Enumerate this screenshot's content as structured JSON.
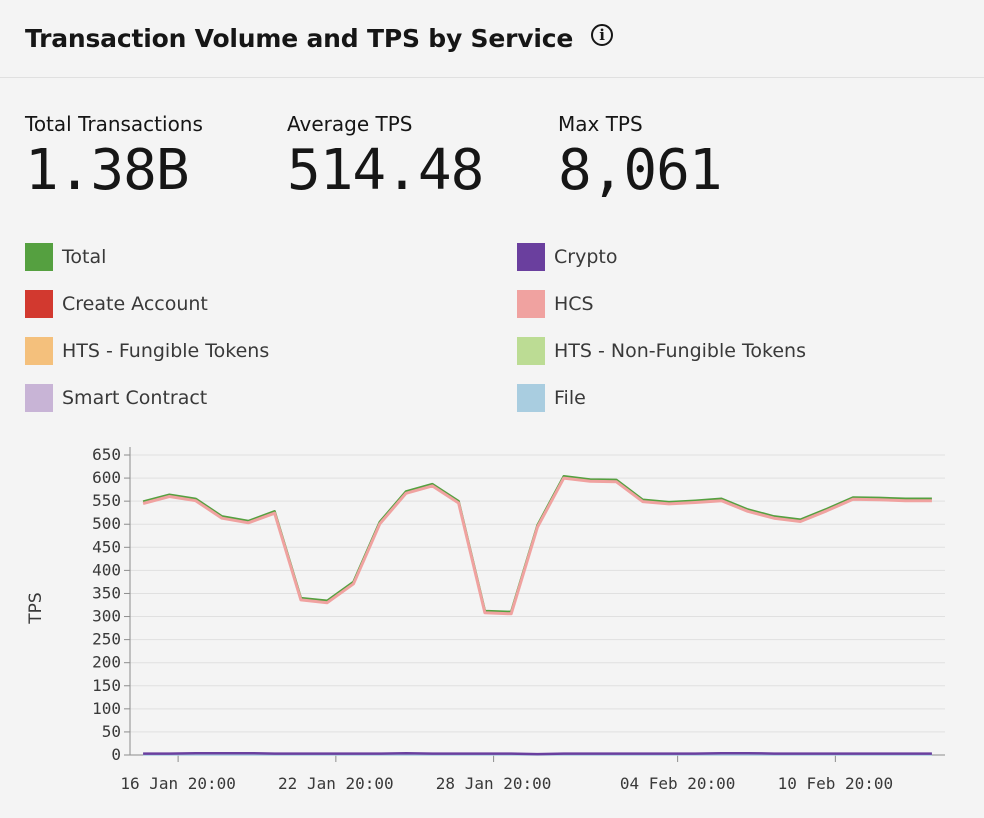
{
  "header": {
    "title": "Transaction Volume and TPS by Service",
    "info_icon": "info-icon"
  },
  "stats": [
    {
      "label": "Total Transactions",
      "value": "1.38B"
    },
    {
      "label": "Average TPS",
      "value": "514.48"
    },
    {
      "label": "Max TPS",
      "value": "8,061"
    }
  ],
  "legend": [
    {
      "label": "Total",
      "color": "#55a040"
    },
    {
      "label": "Crypto",
      "color": "#6a3f9e"
    },
    {
      "label": "Create Account",
      "color": "#d2392f"
    },
    {
      "label": "HCS",
      "color": "#f0a2a0"
    },
    {
      "label": "HTS - Fungible Tokens",
      "color": "#f4c07c"
    },
    {
      "label": "HTS - Non-Fungible Tokens",
      "color": "#bcdc94"
    },
    {
      "label": "Smart Contract",
      "color": "#c8b4d6"
    },
    {
      "label": "File",
      "color": "#a9cde0"
    }
  ],
  "chart_data": {
    "type": "line",
    "ylabel": "TPS",
    "xlabel": "",
    "ylim": [
      0,
      650
    ],
    "yticks": [
      0,
      50,
      100,
      150,
      200,
      250,
      300,
      350,
      400,
      450,
      500,
      550,
      600,
      650
    ],
    "xtick_labels": [
      "16 Jan 20:00",
      "22 Jan 20:00",
      "28 Jan 20:00",
      "04 Feb 20:00",
      "10 Feb 20:00"
    ],
    "xtick_days": [
      16.83,
      22.83,
      28.83,
      35.83,
      41.83
    ],
    "xlim_days": [
      15,
      46
    ],
    "x_days": [
      15.5,
      16.5,
      17.5,
      18.5,
      19.5,
      20.5,
      21.5,
      22.5,
      23.5,
      24.5,
      25.5,
      26.5,
      27.5,
      28.5,
      29.5,
      30.5,
      31.5,
      32.5,
      33.5,
      34.5,
      35.5,
      36.5,
      37.5,
      38.5,
      39.5,
      40.5,
      41.5,
      42.5,
      43.5,
      44.5,
      45.5
    ],
    "series": [
      {
        "name": "Total",
        "color": "#55a040",
        "values": [
          549,
          564,
          555,
          517,
          507,
          528,
          340,
          334,
          375,
          505,
          571,
          587,
          550,
          312,
          310,
          498,
          604,
          597,
          596,
          553,
          548,
          551,
          555,
          532,
          517,
          510,
          533,
          558,
          557,
          555,
          555
        ]
      },
      {
        "name": "HCS",
        "color": "#f0a2a0",
        "values": [
          545,
          560,
          551,
          513,
          503,
          524,
          336,
          330,
          371,
          501,
          567,
          583,
          546,
          308,
          306,
          494,
          600,
          593,
          592,
          549,
          544,
          547,
          551,
          528,
          513,
          506,
          529,
          554,
          553,
          551,
          551
        ]
      },
      {
        "name": "Crypto",
        "color": "#6a3f9e",
        "values": [
          3,
          3,
          4,
          4,
          4,
          3,
          3,
          3,
          3,
          3,
          4,
          3,
          3,
          3,
          3,
          2,
          3,
          3,
          3,
          3,
          3,
          3,
          4,
          4,
          3,
          3,
          3,
          3,
          3,
          3,
          3
        ]
      },
      {
        "name": "File",
        "color": "#a9cde0",
        "values": [
          1,
          1,
          1,
          1,
          1,
          1,
          1,
          1,
          1,
          1,
          1,
          1,
          1,
          1,
          1,
          1,
          1,
          1,
          1,
          1,
          1,
          1,
          1,
          1,
          1,
          1,
          1,
          1,
          1,
          1,
          1
        ]
      }
    ]
  }
}
